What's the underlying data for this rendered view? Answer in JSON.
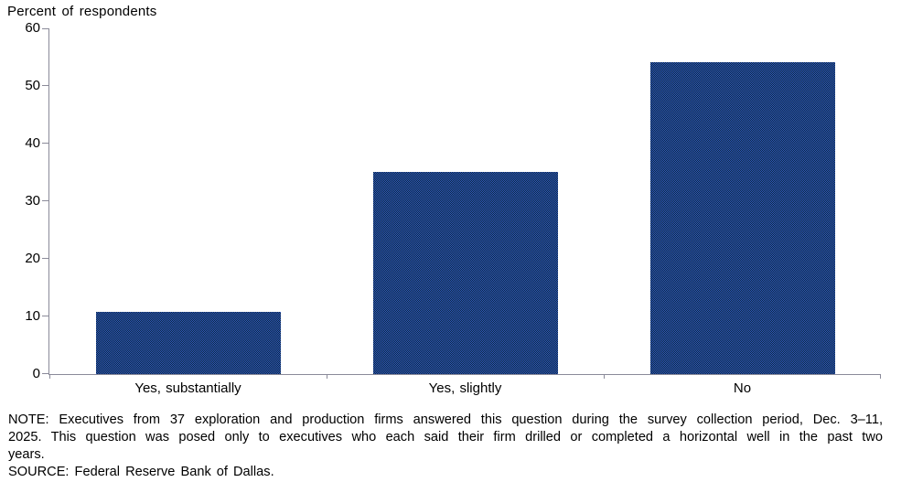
{
  "chart_data": {
    "type": "bar",
    "title": "",
    "ylabel": "Percent of respondents",
    "xlabel": "",
    "categories": [
      "Yes, substantially",
      "Yes, slightly",
      "No"
    ],
    "values": [
      10.8,
      35.1,
      54.1
    ],
    "ylim": [
      0,
      60
    ],
    "ytick_step": 10,
    "yticks": [
      0,
      10,
      20,
      30,
      40,
      50,
      60
    ],
    "grid": false,
    "legend": "none",
    "bar_pattern_colors": [
      "#2f55c4",
      "#0c2a38"
    ],
    "axis_color": "#8a8a99",
    "text_color": "#000000",
    "background_color": "#ffffff"
  },
  "note": {
    "text": "NOTE: Executives from 37 exploration and production firms answered this question during the survey collection period, Dec. 3–11,\n2025. This question was posed only to executives who each said their firm drilled or completed a horizontal well in the past two\nyears.",
    "source": "SOURCE: Federal Reserve Bank of Dallas."
  }
}
